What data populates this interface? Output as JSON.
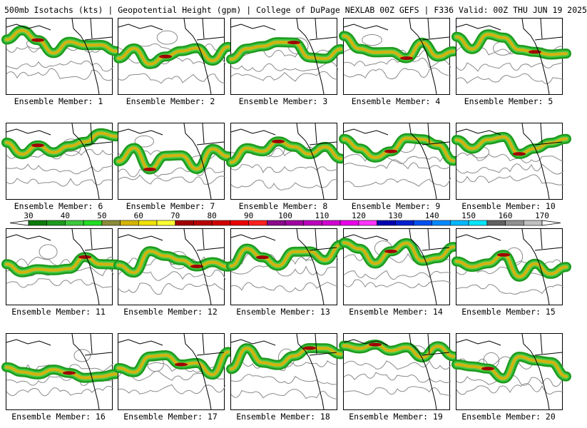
{
  "title": "500mb Isotachs (kts) | Geopotential Height (gpm) | College of DuPage NEXLAB   00Z GEFS | F336 Valid: 00Z THU JUN 19 2025",
  "panels": [
    {
      "label": "Ensemble Member: 1"
    },
    {
      "label": "Ensemble Member: 2"
    },
    {
      "label": "Ensemble Member: 3"
    },
    {
      "label": "Ensemble Member: 4"
    },
    {
      "label": "Ensemble Member: 5"
    },
    {
      "label": "Ensemble Member: 6"
    },
    {
      "label": "Ensemble Member: 7"
    },
    {
      "label": "Ensemble Member: 8"
    },
    {
      "label": "Ensemble Member: 9"
    },
    {
      "label": "Ensemble Member: 10"
    },
    {
      "label": "Ensemble Member: 11"
    },
    {
      "label": "Ensemble Member: 12"
    },
    {
      "label": "Ensemble Member: 13"
    },
    {
      "label": "Ensemble Member: 14"
    },
    {
      "label": "Ensemble Member: 15"
    },
    {
      "label": "Ensemble Member: 16"
    },
    {
      "label": "Ensemble Member: 17"
    },
    {
      "label": "Ensemble Member: 18"
    },
    {
      "label": "Ensemble Member: 19"
    },
    {
      "label": "Ensemble Member: 20"
    }
  ],
  "colorbar": {
    "ticks": [
      "30",
      "40",
      "50",
      "60",
      "70",
      "80",
      "90",
      "100",
      "110",
      "120",
      "130",
      "140",
      "150",
      "160",
      "170"
    ],
    "colors": [
      "#0c7a0c",
      "#1e9a1e",
      "#3cc83c",
      "#22dd22",
      "#8b8b3a",
      "#d4b400",
      "#f0e100",
      "#ffff33",
      "#a00000",
      "#b80000",
      "#d00000",
      "#ec0000",
      "#ff2020",
      "#8a0a8a",
      "#a000a0",
      "#bb00bb",
      "#d000d0",
      "#ea00ea",
      "#ff33ff",
      "#0000b0",
      "#0020d0",
      "#0050f0",
      "#0088ff",
      "#00b8ff",
      "#00e6ff",
      "#606060",
      "#909090",
      "#c0c0c0"
    ]
  },
  "jet_colors": {
    "outer": "#1e9a1e",
    "mid": "#3cc83c",
    "inner": "#b8b83a",
    "core": "#d4b400",
    "max": "#a00000"
  }
}
